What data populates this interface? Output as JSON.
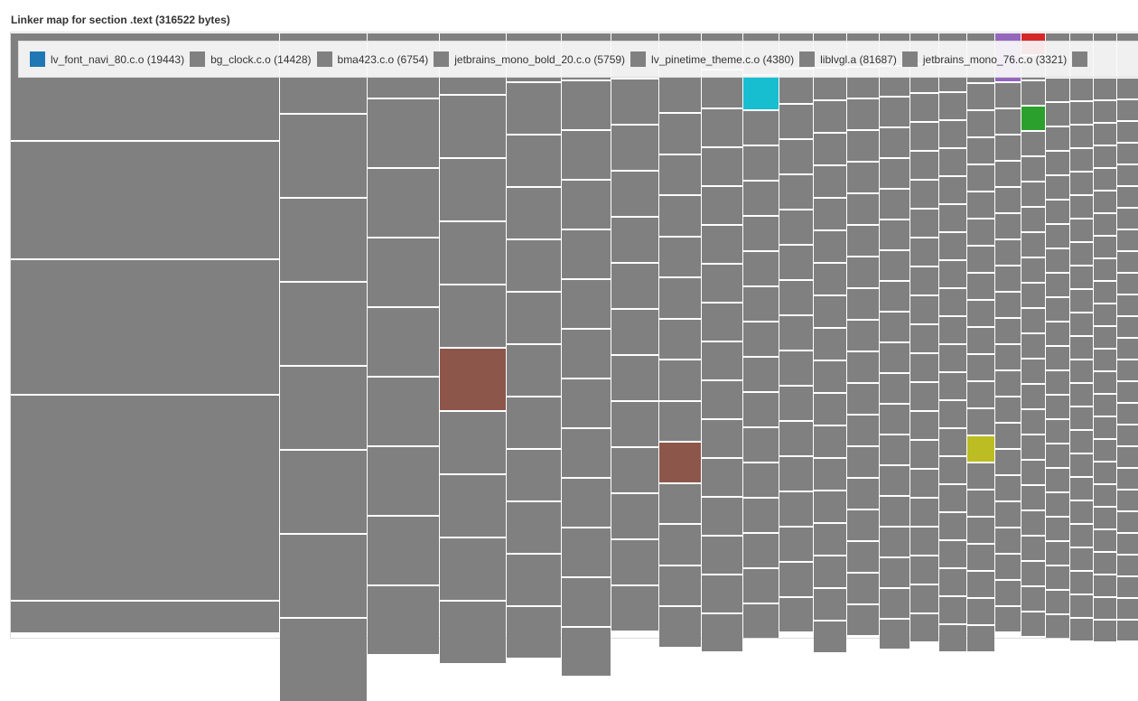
{
  "title": "Linker map for section .text (316522 bytes)",
  "legend": [
    {
      "label": "lv_font_navi_80.c.o (19443)",
      "color": "#1f77b4"
    },
    {
      "label": "bg_clock.c.o (14428)",
      "color": "#808080"
    },
    {
      "label": "bma423.c.o (6754)",
      "color": "#808080"
    },
    {
      "label": "jetbrains_mono_bold_20.c.o (5759)",
      "color": "#808080"
    },
    {
      "label": "lv_pinetime_theme.c.o (4380)",
      "color": "#808080"
    },
    {
      "label": "liblvgl.a (81687)",
      "color": "#808080"
    },
    {
      "label": "jetbrains_mono_76.c.o (3321)",
      "color": "#808080"
    }
  ],
  "chart_data": {
    "type": "treemap",
    "title": "Linker map for section .text (316522 bytes)",
    "total_bytes": 316522,
    "default_color": "#808080",
    "highlight_colors": [
      "#8c564b",
      "#17becf",
      "#bcbd22",
      "#9467bd",
      "#d62728",
      "#2ca02c"
    ],
    "legend_placement": "top",
    "series": [
      {
        "name": "lv_font_navi_80.c.o",
        "value": 19443
      },
      {
        "name": "bg_clock.c.o",
        "value": 14428
      },
      {
        "name": "bma423.c.o",
        "value": 6754
      },
      {
        "name": "jetbrains_mono_bold_20.c.o",
        "value": 5759
      },
      {
        "name": "lv_pinetime_theme.c.o",
        "value": 4380
      },
      {
        "name": "liblvgl.a",
        "value": 81687
      },
      {
        "name": "jetbrains_mono_76.c.o",
        "value": 3321
      }
    ]
  }
}
